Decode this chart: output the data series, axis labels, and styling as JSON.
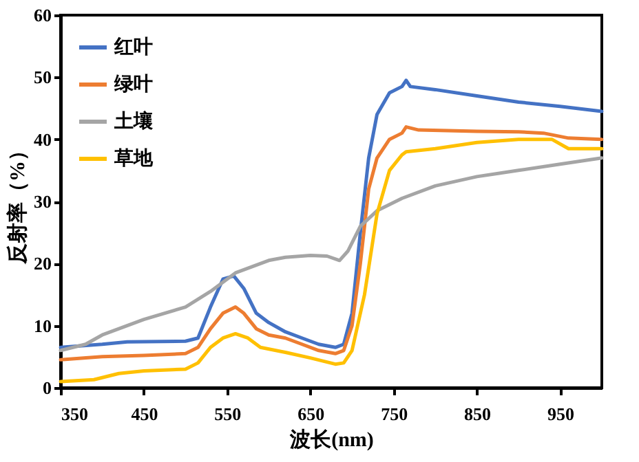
{
  "chart_data": {
    "type": "line",
    "xlabel": "波长(nm)",
    "ylabel": "反射率（%）",
    "xlim": [
      350,
      1000
    ],
    "xticks": [
      350,
      450,
      550,
      650,
      750,
      850,
      950
    ],
    "ylim": [
      0,
      60
    ],
    "yticks": [
      0,
      10,
      20,
      30,
      40,
      50,
      60
    ],
    "grid": false,
    "legend": "top left",
    "line_style": "solid",
    "marker": "none",
    "series": [
      {
        "name": "红叶",
        "color": "#4472c4",
        "x": [
          350,
          400,
          430,
          500,
          515,
          530,
          545,
          558,
          570,
          585,
          600,
          620,
          640,
          660,
          680,
          690,
          700,
          710,
          720,
          730,
          745,
          760,
          765,
          770,
          800,
          850,
          900,
          950,
          1000
        ],
        "values": [
          6.5,
          7,
          7.4,
          7.5,
          8,
          13,
          17.5,
          18,
          16,
          12,
          10.5,
          9,
          8,
          7,
          6.5,
          7,
          12,
          25,
          37,
          44,
          47.5,
          48.5,
          49.5,
          48.5,
          48,
          47,
          46,
          45.3,
          44.5
        ]
      },
      {
        "name": "绿叶",
        "color": "#ed7d31",
        "x": [
          350,
          400,
          450,
          500,
          515,
          530,
          545,
          560,
          570,
          585,
          600,
          620,
          640,
          660,
          680,
          690,
          700,
          710,
          720,
          730,
          745,
          760,
          765,
          780,
          850,
          900,
          930,
          960,
          1000
        ],
        "values": [
          4.5,
          5,
          5.2,
          5.5,
          6.5,
          9.5,
          12,
          13,
          12,
          9.5,
          8.5,
          8,
          7,
          6,
          5.5,
          6,
          10,
          20,
          32,
          37,
          40,
          41,
          42,
          41.5,
          41.3,
          41.2,
          41,
          40.2,
          40
        ]
      },
      {
        "name": "土壤",
        "color": "#a5a5a5",
        "x": [
          350,
          380,
          400,
          450,
          500,
          530,
          560,
          600,
          620,
          650,
          670,
          685,
          695,
          710,
          730,
          760,
          800,
          850,
          900,
          950,
          1000
        ],
        "values": [
          6,
          7,
          8.5,
          11,
          13,
          15.5,
          18.5,
          20.5,
          21,
          21.3,
          21.2,
          20.5,
          22,
          26,
          28.5,
          30.5,
          32.5,
          34,
          35,
          36,
          37
        ]
      },
      {
        "name": "草地",
        "color": "#ffc000",
        "x": [
          350,
          390,
          420,
          450,
          500,
          515,
          530,
          545,
          560,
          575,
          590,
          620,
          650,
          680,
          690,
          700,
          715,
          730,
          745,
          760,
          765,
          800,
          850,
          900,
          940,
          960,
          1000
        ],
        "values": [
          1,
          1.3,
          2.3,
          2.7,
          3,
          4,
          6.5,
          8,
          8.7,
          8,
          6.5,
          5.7,
          4.8,
          3.8,
          4,
          6,
          15,
          28,
          35,
          37.5,
          38,
          38.5,
          39.5,
          40,
          40,
          38.5,
          38.5
        ]
      }
    ]
  }
}
